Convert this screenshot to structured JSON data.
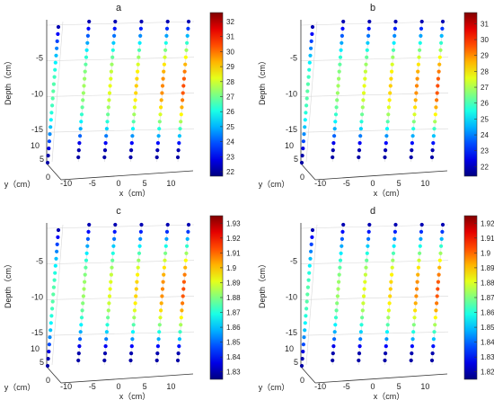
{
  "figure": {
    "panels": [
      "a",
      "b",
      "c",
      "d"
    ],
    "colormap_note_colors": [
      "#0000ff",
      "#00ffff",
      "#ffff00",
      "#ff0000",
      "#7f0000"
    ]
  },
  "chart_data": [
    {
      "type": "scatter",
      "panel": "a",
      "title": "a",
      "xlabel": "x（cm）",
      "ylabel": "y（cm）",
      "zlabel": "Depth（cm）",
      "x_ticks": [
        "-10",
        "-5",
        "0",
        "5",
        "10"
      ],
      "y_ticks": [
        "0",
        "5",
        "10"
      ],
      "z_ticks": [
        "-5",
        "-10",
        "-15"
      ],
      "colorbar_ticks": [
        "22",
        "23",
        "24",
        "25",
        "26",
        "27",
        "28",
        "29",
        "30",
        "31",
        "32"
      ],
      "colorbar_range": [
        21.7,
        32.6
      ],
      "colormap": "jet",
      "columns_x": [
        -12,
        -7,
        -2,
        3,
        8,
        12
      ],
      "depth_range": [
        0,
        -19
      ],
      "grid": true,
      "legend": "colorbar-right"
    },
    {
      "type": "scatter",
      "panel": "b",
      "title": "b",
      "xlabel": "x（cm）",
      "ylabel": "y（cm）",
      "zlabel": "Depth（cm）",
      "x_ticks": [
        "-10",
        "-5",
        "0",
        "5",
        "10"
      ],
      "y_ticks": [
        "0",
        "5",
        "10"
      ],
      "z_ticks": [
        "-5",
        "-10",
        "-15"
      ],
      "colorbar_ticks": [
        "22",
        "23",
        "24",
        "25",
        "26",
        "27",
        "28",
        "29",
        "30",
        "31"
      ],
      "colorbar_range": [
        21.4,
        31.7
      ],
      "colormap": "jet",
      "columns_x": [
        -12,
        -7,
        -2,
        3,
        8,
        12
      ],
      "depth_range": [
        0,
        -19
      ],
      "grid": true,
      "legend": "colorbar-right"
    },
    {
      "type": "scatter",
      "panel": "c",
      "title": "c",
      "xlabel": "x（cm）",
      "ylabel": "y（cm）",
      "zlabel": "Depth（cm）",
      "x_ticks": [
        "-10",
        "-5",
        "0",
        "5",
        "10"
      ],
      "y_ticks": [
        "0",
        "5",
        "10"
      ],
      "z_ticks": [
        "-5",
        "-10",
        "-15"
      ],
      "colorbar_ticks": [
        "1.83",
        "1.84",
        "1.85",
        "1.86",
        "1.87",
        "1.88",
        "1.89",
        "1.9",
        "1.91",
        "1.92",
        "1.93"
      ],
      "colorbar_range": [
        1.825,
        1.935
      ],
      "colormap": "jet",
      "columns_x": [
        -12,
        -7,
        -2,
        3,
        8,
        12
      ],
      "depth_range": [
        0,
        -19
      ],
      "grid": true,
      "legend": "colorbar-right"
    },
    {
      "type": "scatter",
      "panel": "d",
      "title": "d",
      "xlabel": "x（cm）",
      "ylabel": "y（cm）",
      "zlabel": "Depth（cm）",
      "x_ticks": [
        "-10",
        "-5",
        "0",
        "5",
        "10"
      ],
      "y_ticks": [
        "0",
        "5",
        "10"
      ],
      "z_ticks": [
        "-5",
        "-10",
        "-15"
      ],
      "colorbar_ticks": [
        "1.82",
        "1.83",
        "1.84",
        "1.85",
        "1.86",
        "1.87",
        "1.88",
        "1.89",
        "1.9",
        "1.91",
        "1.92"
      ],
      "colorbar_range": [
        1.815,
        1.925
      ],
      "colormap": "jet",
      "columns_x": [
        -12,
        -7,
        -2,
        3,
        8,
        12
      ],
      "depth_range": [
        0,
        -19
      ],
      "grid": true,
      "legend": "colorbar-right"
    }
  ]
}
